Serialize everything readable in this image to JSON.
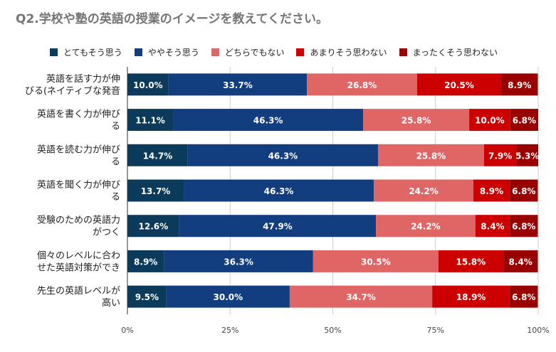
{
  "chart_data": {
    "type": "bar",
    "orientation": "horizontal",
    "stacked": true,
    "title": "Q2.学校や塾の英語の授業のイメージを教えてください。",
    "legend_position": "top",
    "categories": [
      [
        "英語を話す力が伸",
        "びる(ネイティブな発音"
      ],
      [
        "英語を書く力が伸び",
        "る"
      ],
      [
        "英語を読む力が伸び",
        "る"
      ],
      [
        "英語を聞く力が伸び",
        "る"
      ],
      [
        "受験のための英語力",
        "がつく"
      ],
      [
        "個々のレベルに合わ",
        "せた英語対策ができ"
      ],
      [
        "先生の英語レベルが",
        "高い"
      ]
    ],
    "series": [
      {
        "name": "とてもそう思う",
        "color": "#0c3a5a",
        "values": [
          10.0,
          11.1,
          14.7,
          13.7,
          12.6,
          8.9,
          9.5
        ]
      },
      {
        "name": "ややそう思う",
        "color": "#123d7f",
        "values": [
          33.7,
          46.3,
          46.3,
          46.3,
          47.9,
          36.3,
          30.0
        ]
      },
      {
        "name": "どちらでもない",
        "color": "#e06666",
        "values": [
          26.8,
          25.8,
          25.8,
          24.2,
          24.2,
          30.5,
          34.7
        ]
      },
      {
        "name": "あまりそう思わない",
        "color": "#cc0000",
        "values": [
          20.5,
          10.0,
          7.9,
          8.9,
          8.4,
          15.8,
          18.9
        ]
      },
      {
        "name": "まったくそう思わない",
        "color": "#990000",
        "values": [
          8.9,
          6.8,
          5.3,
          6.8,
          6.8,
          8.4,
          6.8
        ]
      }
    ],
    "x_ticks": [
      0,
      25,
      50,
      75,
      100
    ],
    "x_tick_suffix": "%",
    "xlim": [
      0,
      100
    ],
    "grid": true
  }
}
